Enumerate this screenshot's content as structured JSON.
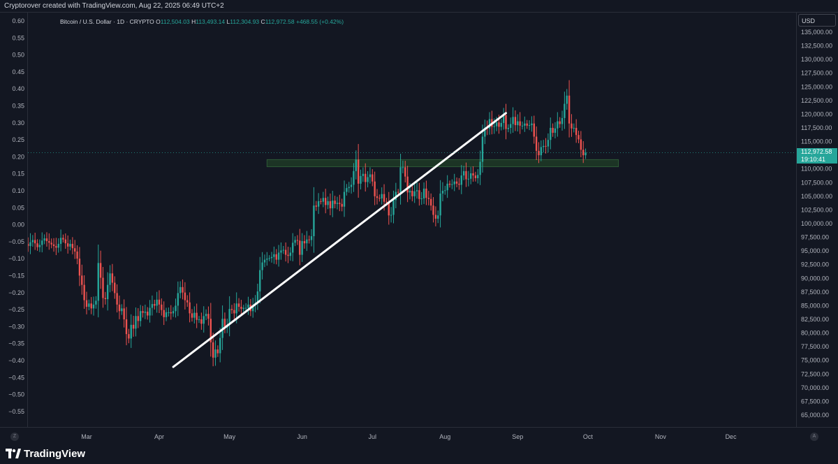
{
  "header": {
    "attribution": "Cryptorover created with TradingView.com, Aug 22, 2025 06:49 UTC+2"
  },
  "legend": {
    "symbol": "Bitcoin / U.S. Dollar · 1D · CRYPTO",
    "o_label": "O",
    "o_value": "112,504.03",
    "h_label": "H",
    "h_value": "113,493.14",
    "l_label": "L",
    "l_value": "112,304.93",
    "c_label": "C",
    "c_value": "112,972.58",
    "change": "+468.55 (+0.42%)"
  },
  "currency_button": "USD",
  "last_price": {
    "value": "112,972.58",
    "countdown": "19:10:41"
  },
  "left_axis_button": "Z",
  "right_axis_button": "A",
  "footer": {
    "brand": "TradingView"
  },
  "colors": {
    "background": "#131722",
    "up": "#26a69a",
    "down": "#ef5350",
    "trendline": "#ffffff",
    "zone": "#1f3a26"
  },
  "chart_data": {
    "type": "candlestick",
    "title": "Bitcoin / U.S. Dollar · 1D · CRYPTO",
    "y_right": {
      "label": "USD",
      "ylim": [
        63000,
        138000
      ],
      "ticks": [
        "135,000.00",
        "132,500.00",
        "130,000.00",
        "127,500.00",
        "125,000.00",
        "122,500.00",
        "120,000.00",
        "117,500.00",
        "115,000.00",
        "110,000.00",
        "107,500.00",
        "105,000.00",
        "102,500.00",
        "100,000.00",
        "97,500.00",
        "95,000.00",
        "92,500.00",
        "90,000.00",
        "87,500.00",
        "85,000.00",
        "82,500.00",
        "80,000.00",
        "77,500.00",
        "75,000.00",
        "72,500.00",
        "70,000.00",
        "67,500.00",
        "65,000.00"
      ]
    },
    "y_left": {
      "ticks": [
        "0.60",
        "0.55",
        "0.50",
        "0.45",
        "0.40",
        "0.35",
        "0.30",
        "0.25",
        "0.20",
        "0.15",
        "0.10",
        "0.05",
        "0.00",
        "−0.05",
        "−0.10",
        "−0.15",
        "−0.20",
        "−0.25",
        "−0.30",
        "−0.35",
        "−0.40",
        "−0.45",
        "−0.50",
        "−0.55"
      ]
    },
    "x_ticks": [
      "Mar",
      "Apr",
      "May",
      "Jun",
      "Jul",
      "Aug",
      "Sep",
      "Oct",
      "Nov",
      "Dec"
    ],
    "closes": [
      97500,
      96800,
      95800,
      96200,
      95500,
      96000,
      96300,
      95900,
      96600,
      97000,
      96400,
      95700,
      96100,
      96900,
      97300,
      96800,
      96500,
      96200,
      95900,
      95600,
      96300,
      97400,
      97100,
      96400,
      95800,
      96300,
      95500,
      94900,
      93600,
      90500,
      88800,
      86000,
      84800,
      85400,
      84500,
      85200,
      85900,
      92800,
      90100,
      86400,
      86200,
      88800,
      90900,
      89200,
      87300,
      85200,
      84000,
      84500,
      82500,
      79800,
      79000,
      81500,
      80800,
      83100,
      82200,
      84000,
      83700,
      83900,
      83200,
      84600,
      85300,
      85000,
      86100,
      85200,
      84200,
      82900,
      83800,
      83800,
      83600,
      84000,
      85000,
      87300,
      88400,
      87400,
      86000,
      85600,
      83600,
      82800,
      83700,
      82400,
      82500,
      81700,
      83100,
      83500,
      82600,
      78300,
      75500,
      77000,
      76300,
      79100,
      82600,
      81000,
      81500,
      84400,
      84200,
      83600,
      85400,
      84800,
      84400,
      84600,
      84600,
      85200,
      84000,
      85100,
      85500,
      87600,
      91500,
      92900,
      93400,
      93600,
      93700,
      93900,
      94400,
      93400,
      94700,
      95100,
      95200,
      94300,
      94100,
      94700,
      96500,
      97000,
      96900,
      94300,
      96800,
      96400,
      97100,
      97000,
      97700,
      103300,
      103100,
      104100,
      104000,
      104700,
      103400,
      104100,
      102800,
      104200,
      103600,
      103800,
      103600,
      103100,
      105800,
      106500,
      106700,
      107100,
      109600,
      111700,
      107300,
      108700,
      109100,
      107600,
      108500,
      109000,
      107700,
      105000,
      104700,
      104600,
      105400,
      104000,
      103900,
      101500,
      101600,
      104300,
      105800,
      105700,
      110300,
      110300,
      108600,
      105700,
      106000,
      105000,
      105900,
      106100,
      104500,
      104600,
      106400,
      104700,
      104500,
      103300,
      101600,
      100900,
      101500,
      105500,
      106000,
      106100,
      107300,
      107100,
      107200,
      107700,
      107300,
      107100,
      108800,
      109600,
      108100,
      108200,
      109200,
      108800,
      108300,
      108900,
      111300,
      115900,
      117500,
      117400,
      119100,
      117700,
      117800,
      118500,
      117700,
      118400,
      119800,
      117300,
      117500,
      118200,
      119500,
      118000,
      118700,
      117900,
      117900,
      118300,
      117900,
      118000,
      118300,
      115900,
      113300,
      112500,
      114000,
      114200,
      114100,
      115300,
      117500,
      116600,
      117400,
      118700,
      118200,
      119300,
      121900,
      123400,
      118300,
      117400,
      117500,
      116200,
      115400,
      113500,
      112500,
      112970
    ],
    "trendline": {
      "from": {
        "date": "2025-04-07",
        "price": 73800
      },
      "to": {
        "date": "2025-08-27",
        "price": 120200
      }
    },
    "support_zone": {
      "from_date": "2025-05-17",
      "to_date": "2025-10-14",
      "low": 110400,
      "high": 111700
    },
    "grid": false
  }
}
